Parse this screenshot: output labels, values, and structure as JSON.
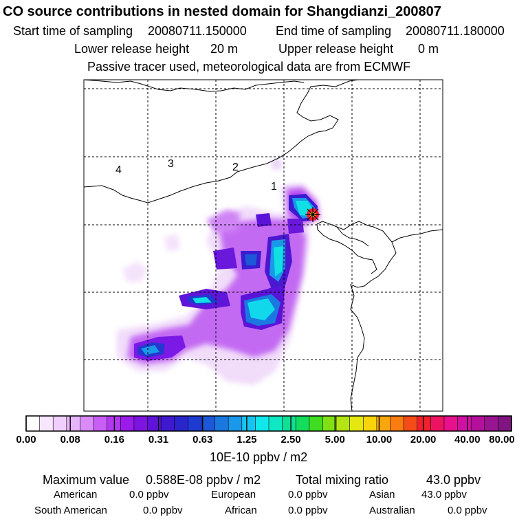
{
  "header": {
    "title": "CO  source contributions in nested domain for Shangdianzi_200807",
    "start_label": "Start time of sampling",
    "start_value": "20080711.150000",
    "end_label": "End time of sampling",
    "end_value": "20080711.180000",
    "lower_label": "Lower release height",
    "lower_value": "20 m",
    "upper_label": "Upper release height",
    "upper_value": "0 m",
    "note": "Passive tracer used, meteorological data are from ECMWF"
  },
  "colors": {
    "ramp": [
      "#ffffff",
      "#f8e6ff",
      "#f0cffc",
      "#e6b4fa",
      "#d98cf7",
      "#c95ef5",
      "#b336f0",
      "#9a1bea",
      "#7d14e0",
      "#5f12d8",
      "#4018d0",
      "#2a24cc",
      "#1f3ad0",
      "#1c58d8",
      "#1a78e0",
      "#1a98ea",
      "#14c4f2",
      "#10e8ec",
      "#10e8c4",
      "#10e094",
      "#14dc5c",
      "#40dc20",
      "#80e014",
      "#b4e414",
      "#e4e810",
      "#f8d40c",
      "#f8a80c",
      "#f87c10",
      "#f44c18",
      "#f0202c",
      "#ec1460",
      "#e8108c",
      "#d010a4",
      "#b4109c",
      "#981490",
      "#801480"
    ]
  },
  "chart_data": {
    "type": "heatmap",
    "title": "CO  source contributions in nested domain for Shangdianzi_200807",
    "colorbar": {
      "ticks": [
        "0.00",
        "0.08",
        "0.16",
        "0.31",
        "0.63",
        "1.25",
        "2.50",
        "5.00",
        "10.00",
        "20.00",
        "40.00",
        "80.00"
      ],
      "unit_label": "10E-10 ppbv / m2"
    },
    "region_labels": [
      "1",
      "2",
      "3",
      "4"
    ],
    "receptor": "Shangdianzi"
  },
  "summary": {
    "max_label": "Maximum value",
    "max_value": "0.588E-08 ppbv / m2",
    "total_label": "Total mixing ratio",
    "total_value": "43.0 ppbv",
    "regions": [
      {
        "label": "American",
        "value": "0.0 ppbv"
      },
      {
        "label": "European",
        "value": "0.0 ppbv"
      },
      {
        "label": "Asian",
        "value": "43.0 ppbv"
      },
      {
        "label": "South American",
        "value": "0.0 ppbv"
      },
      {
        "label": "African",
        "value": "0.0 ppbv"
      },
      {
        "label": "Australian",
        "value": "0.0 ppbv"
      }
    ]
  }
}
